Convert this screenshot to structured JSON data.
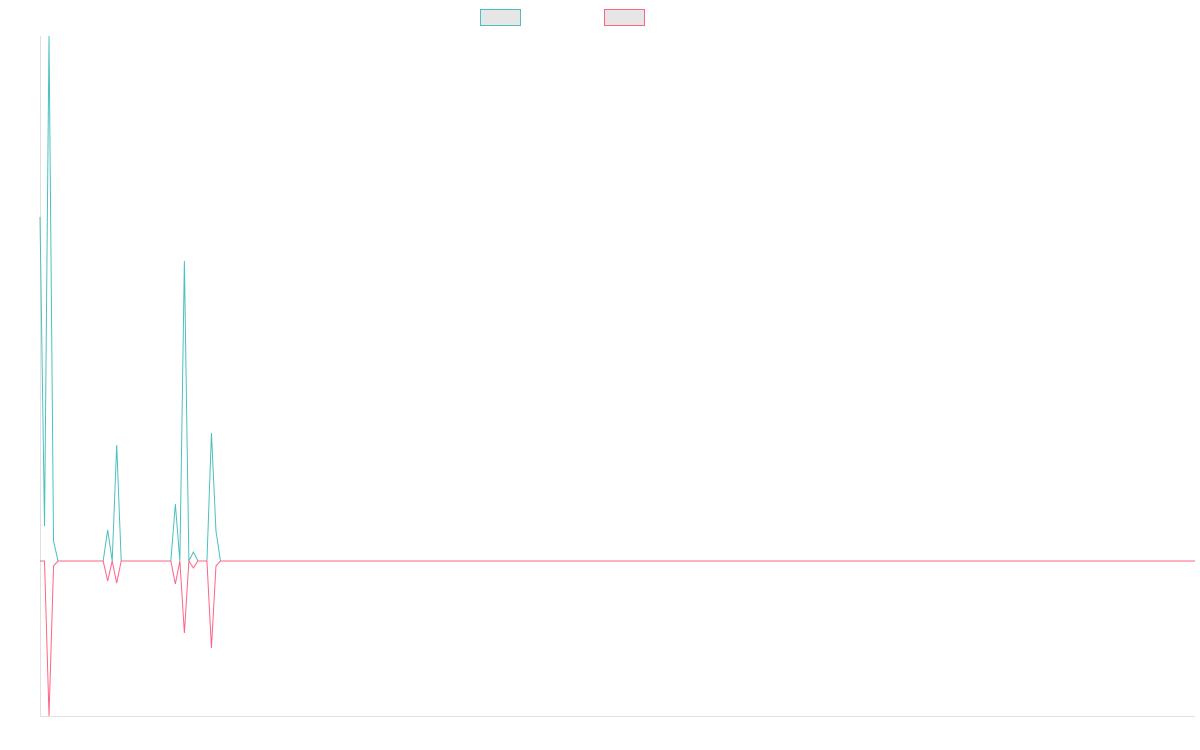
{
  "chart_data": {
    "type": "line",
    "x": [
      0,
      1,
      2,
      3,
      4,
      14,
      15,
      16,
      17,
      18,
      29,
      30,
      31,
      32,
      33,
      34,
      35,
      37,
      38,
      39,
      40,
      256
    ],
    "xlim": [
      0,
      256
    ],
    "ylim": [
      -155,
      525
    ],
    "series": [
      {
        "color": "#4bc0c0",
        "values": [
          344,
          35,
          525,
          20,
          0,
          0,
          31,
          0,
          116,
          0,
          0,
          57,
          0,
          300,
          0,
          9,
          0,
          0,
          128,
          30,
          0,
          0
        ]
      },
      {
        "color": "#ff6384",
        "values": [
          0,
          0,
          -155,
          -5,
          0,
          0,
          -20,
          0,
          -22,
          0,
          0,
          -23,
          0,
          -72,
          0,
          -7,
          0,
          0,
          -87,
          -5,
          0,
          0
        ]
      }
    ]
  }
}
